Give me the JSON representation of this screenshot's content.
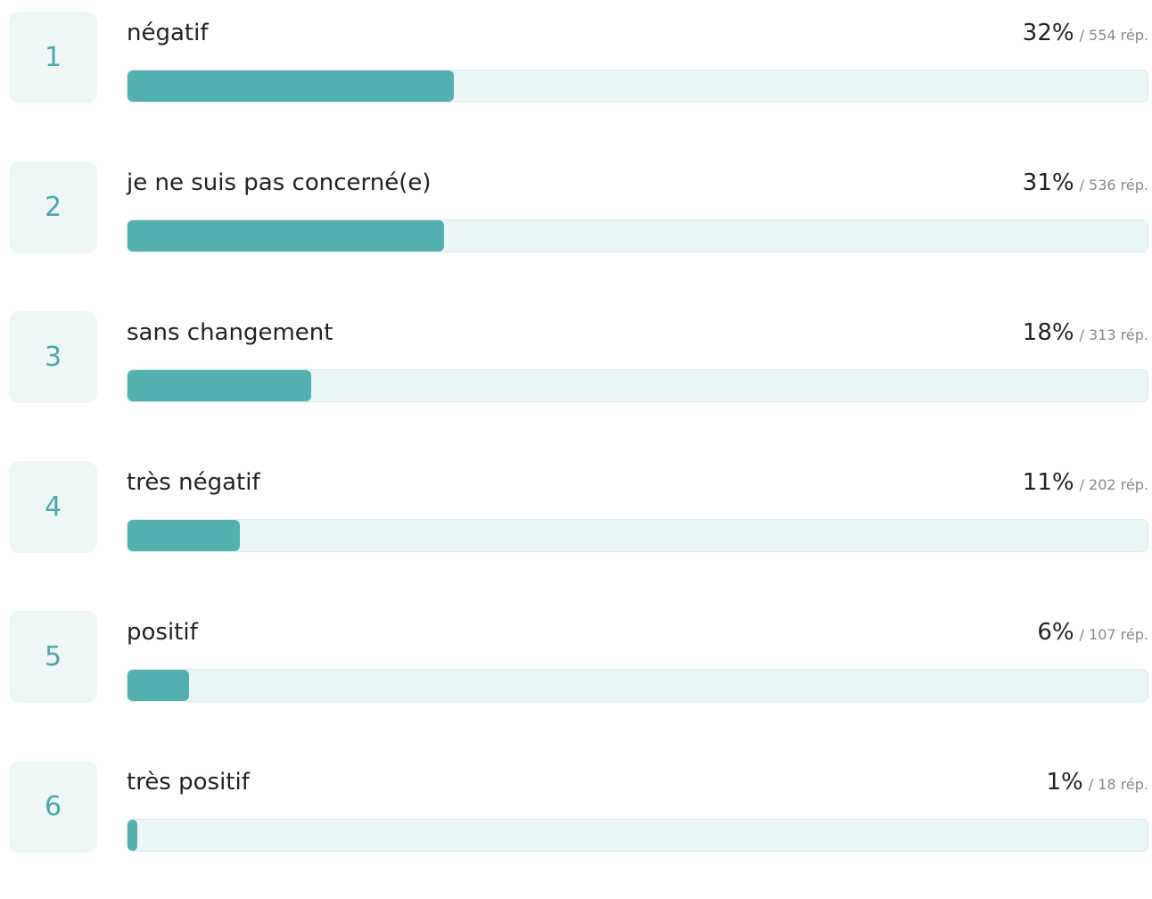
{
  "chart_data": {
    "type": "bar",
    "orientation": "horizontal",
    "ranks": [
      1,
      2,
      3,
      4,
      5,
      6
    ],
    "categories": [
      "négatif",
      "je ne suis pas concerné(e)",
      "sans changement",
      "très négatif",
      "positif",
      "très positif"
    ],
    "values": [
      32,
      31,
      18,
      11,
      6,
      1
    ],
    "value_labels": [
      "32%",
      "31%",
      "18%",
      "11%",
      "6%",
      "1%"
    ],
    "count_labels": [
      "/ 554 rép.",
      "/ 536 rép.",
      "/ 313 rép.",
      "/ 202 rép.",
      "/ 107 rép.",
      "/ 18 rép."
    ],
    "xlim": [
      0,
      100
    ],
    "color": "#52b0b0"
  }
}
